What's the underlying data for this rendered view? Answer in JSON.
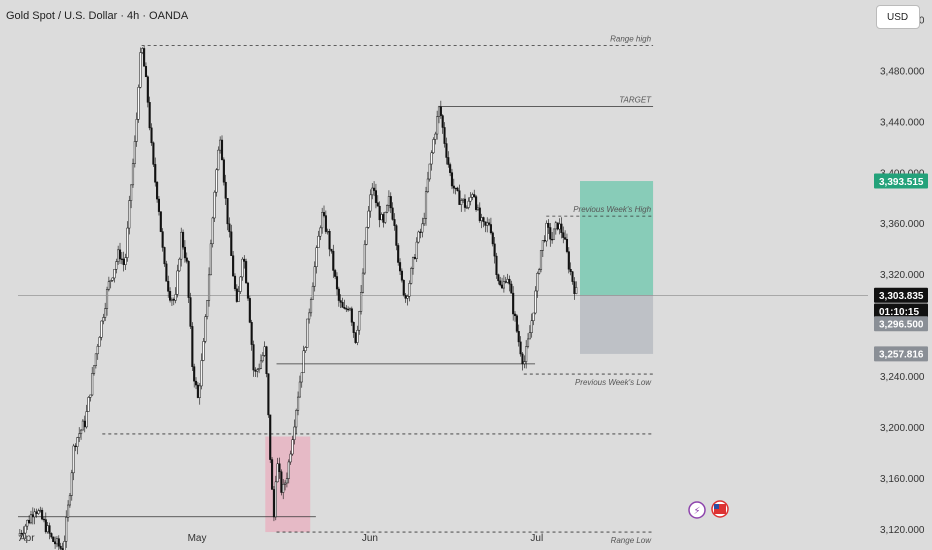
{
  "header": {
    "title": "Gold Spot / U.S. Dollar · 4h · OANDA",
    "currency": "USD"
  },
  "chart_data": {
    "type": "candlestick",
    "ylim": [
      3100,
      3540
    ],
    "y_ticks": [
      {
        "v": 3520,
        "label": "3,520.000"
      },
      {
        "v": 3480,
        "label": "3,480.000"
      },
      {
        "v": 3440,
        "label": "3,440.000"
      },
      {
        "v": 3400,
        "label": "3,400.000"
      },
      {
        "v": 3360,
        "label": "3,360.000"
      },
      {
        "v": 3320,
        "label": "3,320.000"
      },
      {
        "v": 3240,
        "label": "3,240.000"
      },
      {
        "v": 3200,
        "label": "3,200.000"
      },
      {
        "v": 3160,
        "label": "3,160.000"
      },
      {
        "v": 3120,
        "label": "3,120.000"
      }
    ],
    "x_ticks": [
      {
        "t": 0,
        "label": "Apr"
      },
      {
        "t": 30,
        "label": "May"
      },
      {
        "t": 61,
        "label": "Jun"
      },
      {
        "t": 91,
        "label": "Jul"
      }
    ],
    "price_path": [
      [
        0,
        3115
      ],
      [
        2,
        3128
      ],
      [
        3,
        3138
      ],
      [
        5,
        3122
      ],
      [
        6,
        3112
      ],
      [
        8,
        3104
      ],
      [
        9,
        3140
      ],
      [
        10,
        3188
      ],
      [
        12,
        3205
      ],
      [
        14,
        3262
      ],
      [
        16,
        3310
      ],
      [
        18,
        3338
      ],
      [
        19,
        3326
      ],
      [
        20,
        3385
      ],
      [
        21,
        3432
      ],
      [
        21.5,
        3476
      ],
      [
        22,
        3500
      ],
      [
        23,
        3462
      ],
      [
        24,
        3406
      ],
      [
        25,
        3376
      ],
      [
        26,
        3326
      ],
      [
        27,
        3305
      ],
      [
        28,
        3298
      ],
      [
        29,
        3352
      ],
      [
        30,
        3330
      ],
      [
        31,
        3250
      ],
      [
        32,
        3222
      ],
      [
        33,
        3264
      ],
      [
        34,
        3322
      ],
      [
        35,
        3388
      ],
      [
        36,
        3432
      ],
      [
        37,
        3376
      ],
      [
        38,
        3332
      ],
      [
        39,
        3292
      ],
      [
        40,
        3340
      ],
      [
        41,
        3302
      ],
      [
        42,
        3240
      ],
      [
        43,
        3250
      ],
      [
        44,
        3262
      ],
      [
        44.5,
        3212
      ],
      [
        45,
        3166
      ],
      [
        45.5,
        3126
      ],
      [
        46,
        3175
      ],
      [
        47,
        3148
      ],
      [
        48,
        3166
      ],
      [
        49,
        3200
      ],
      [
        50,
        3232
      ],
      [
        51,
        3262
      ],
      [
        52,
        3300
      ],
      [
        53,
        3332
      ],
      [
        54,
        3368
      ],
      [
        55,
        3354
      ],
      [
        56,
        3328
      ],
      [
        57,
        3300
      ],
      [
        58,
        3290
      ],
      [
        59,
        3298
      ],
      [
        60,
        3268
      ],
      [
        61,
        3300
      ],
      [
        62,
        3356
      ],
      [
        63,
        3390
      ],
      [
        64,
        3372
      ],
      [
        65,
        3358
      ],
      [
        66,
        3378
      ],
      [
        67,
        3362
      ],
      [
        68,
        3318
      ],
      [
        69,
        3302
      ],
      [
        70,
        3322
      ],
      [
        71,
        3346
      ],
      [
        72,
        3358
      ],
      [
        73,
        3396
      ],
      [
        74,
        3428
      ],
      [
        75,
        3452
      ],
      [
        76,
        3422
      ],
      [
        77,
        3396
      ],
      [
        78,
        3382
      ],
      [
        79,
        3378
      ],
      [
        80,
        3372
      ],
      [
        81,
        3388
      ],
      [
        82,
        3364
      ],
      [
        83,
        3356
      ],
      [
        84,
        3362
      ],
      [
        85,
        3328
      ],
      [
        86,
        3306
      ],
      [
        87,
        3322
      ],
      [
        88,
        3296
      ],
      [
        89,
        3270
      ],
      [
        90,
        3250
      ],
      [
        91,
        3272
      ],
      [
        92,
        3302
      ],
      [
        93,
        3338
      ],
      [
        94,
        3356
      ],
      [
        95,
        3348
      ],
      [
        96,
        3360
      ],
      [
        97,
        3352
      ],
      [
        98,
        3328
      ],
      [
        99,
        3310
      ],
      [
        99.5,
        3303.835
      ]
    ],
    "levels": [
      {
        "name": "range-high-line",
        "y": 3500,
        "t0": 22,
        "t1": 113,
        "style": "dashed",
        "label": "Range high"
      },
      {
        "name": "target-line",
        "y": 3452,
        "t0": 75,
        "t1": 113,
        "style": "solid",
        "label": "TARGET"
      },
      {
        "name": "prev-week-high-line",
        "y": 3366,
        "t0": 94,
        "t1": 113,
        "style": "dashed",
        "label": "Previous Week's High"
      },
      {
        "name": "prev-week-low-line",
        "y": 3242,
        "t0": 90,
        "t1": 113,
        "style": "dashed",
        "label": "Previous Week's Low"
      },
      {
        "name": "range-low-line",
        "y": 3118,
        "t0": 46,
        "t1": 113,
        "style": "dashed",
        "label": "Range Low"
      }
    ],
    "extra_lines": [
      {
        "name": "support-line-mid",
        "y": 3250,
        "t0": 46,
        "t1": 92,
        "style": "solid"
      },
      {
        "name": "support-line-low",
        "y": 3130,
        "t0": 0,
        "t1": 53,
        "style": "solid"
      },
      {
        "name": "dashed-3195-line",
        "y": 3195,
        "t0": 15,
        "t1": 113,
        "style": "dashed"
      },
      {
        "name": "current-price-line",
        "y": 3303.835,
        "t0": 0,
        "t1": 125,
        "style": "solid"
      }
    ],
    "zones": [
      {
        "name": "demand-zone",
        "t0": 44,
        "t1": 52,
        "y0": 3118,
        "y1": 3193,
        "color": "#e8b4c2"
      },
      {
        "name": "long-target-zone",
        "t0": 100,
        "t1": 113,
        "y0": 3303.835,
        "y1": 3393.515,
        "color": "#79c9b1"
      },
      {
        "name": "long-stop-zone",
        "t0": 100,
        "t1": 113,
        "y0": 3257.816,
        "y1": 3303.835,
        "color": "#b8bcc2"
      }
    ],
    "price_tags": [
      {
        "name": "target-price-tag",
        "label": "3,393.515",
        "y": 3393.515,
        "color": "#23a27a"
      },
      {
        "name": "current-price-tag",
        "label": "3,303.835",
        "y": 3303.835,
        "color": "#111111"
      },
      {
        "name": "countdown-tag",
        "label": "01:10:15",
        "y": 3291.5,
        "color": "#111111"
      },
      {
        "name": "entry-price-tag",
        "label": "3,296.500",
        "y": 3281.5,
        "color": "#8a8f96"
      },
      {
        "name": "stop-price-tag",
        "label": "3,257.816",
        "y": 3257.816,
        "color": "#8a8f96"
      }
    ]
  }
}
